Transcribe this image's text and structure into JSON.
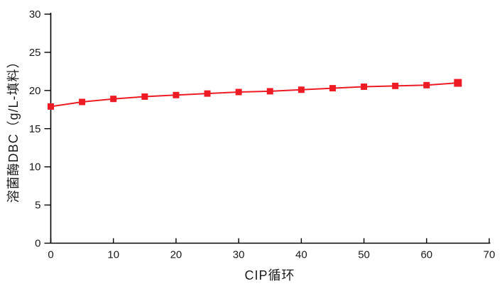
{
  "page": {
    "background": "#ffffff"
  },
  "chart_data": {
    "type": "line",
    "title": "",
    "xlabel": "CIP循环",
    "ylabel": "溶菌酶DBC（g/L-填料）",
    "x": [
      0,
      5,
      10,
      15,
      20,
      25,
      30,
      35,
      40,
      45,
      50,
      55,
      60,
      65
    ],
    "series": [
      {
        "name": "溶菌酶DBC",
        "color": "#ed1c24",
        "marker": "square",
        "values": [
          17.9,
          18.5,
          18.9,
          19.2,
          19.4,
          19.6,
          19.8,
          19.9,
          20.1,
          20.3,
          20.5,
          20.6,
          20.7,
          21.0
        ]
      }
    ],
    "xlim": [
      0,
      70
    ],
    "ylim": [
      0,
      30
    ],
    "xticks": [
      0,
      10,
      20,
      30,
      40,
      50,
      60,
      70
    ],
    "yticks": [
      0,
      5,
      10,
      15,
      20,
      25,
      30
    ],
    "grid": false,
    "legend_position": "none",
    "axis_color": "#000000"
  }
}
